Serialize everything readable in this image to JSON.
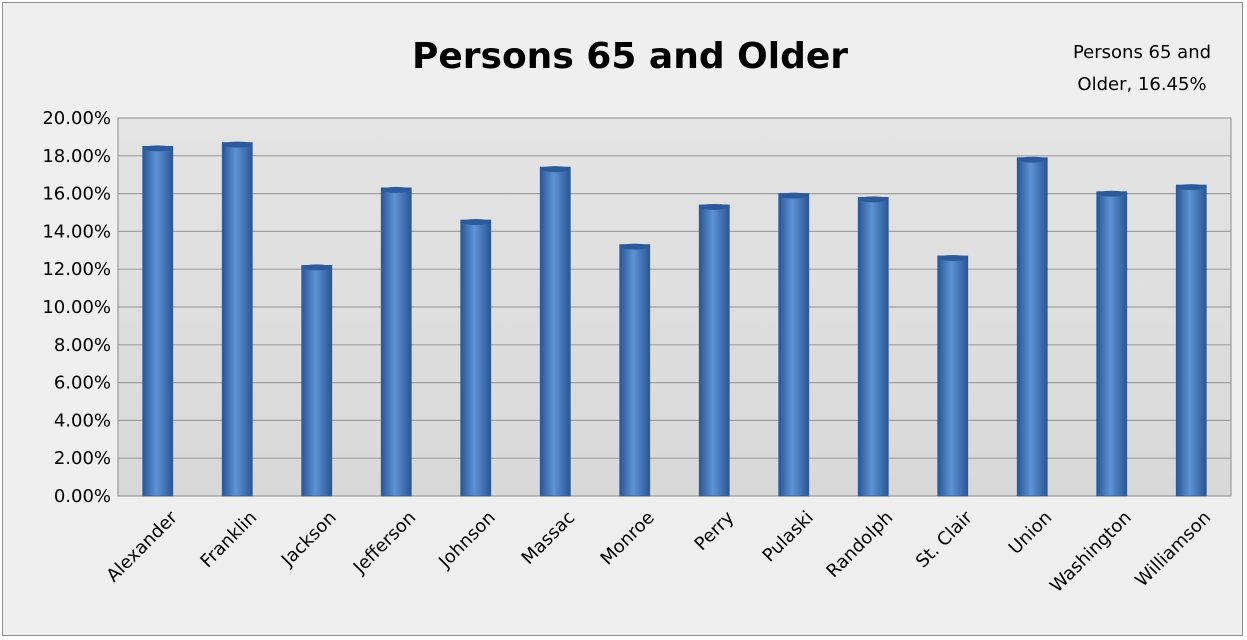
{
  "chart_data": {
    "type": "bar",
    "title": "Persons 65 and Older",
    "annotation": [
      "Persons 65 and",
      "Older, 16.45%"
    ],
    "categories": [
      "Alexander",
      "Franklin",
      "Jackson",
      "Jefferson",
      "Johnson",
      "Massac",
      "Monroe",
      "Perry",
      "Pulaski",
      "Randolph",
      "St. Clair",
      "Union",
      "Washington",
      "Williamson"
    ],
    "series": [
      {
        "values": [
          18.5,
          18.7,
          12.2,
          16.3,
          14.6,
          17.4,
          13.3,
          15.4,
          16.0,
          15.8,
          12.7,
          17.9,
          16.1,
          16.45
        ]
      }
    ],
    "ylim": [
      0,
      20
    ],
    "ytick_step": 2,
    "ytick_format": "percent-2dp",
    "grid": true,
    "legend": "none",
    "colors": {
      "bar": "#4f81bd",
      "bar_dark": "#2c5a9b",
      "plot_bg": "#dedede",
      "grid": "#a0a0a0"
    }
  }
}
